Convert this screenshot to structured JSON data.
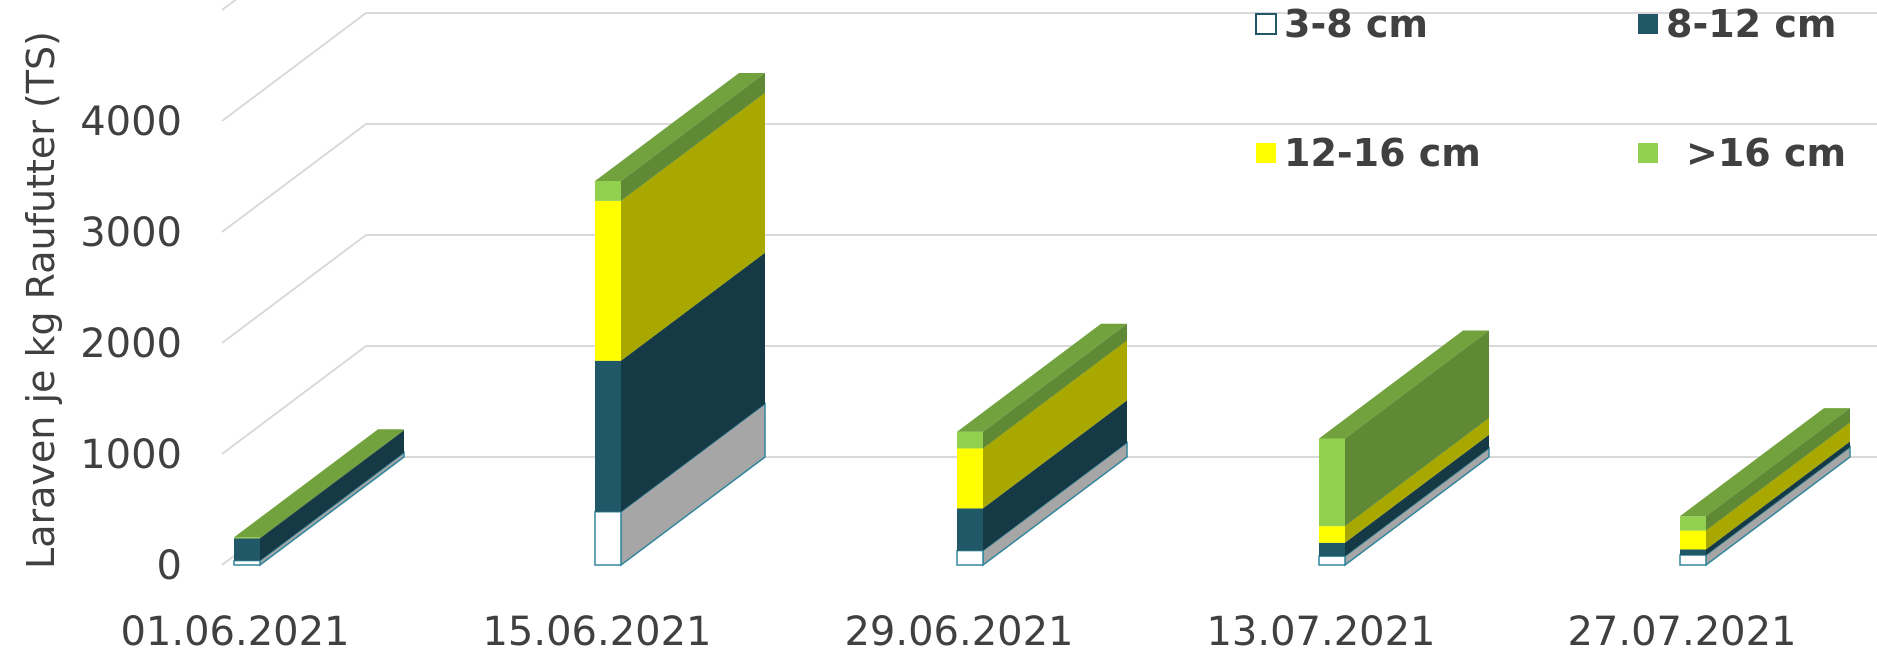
{
  "chart_data": {
    "type": "bar",
    "stacked": true,
    "three_d": true,
    "title": "",
    "xlabel": "",
    "ylabel": "Laraven je kg Raufutter  (TS)",
    "ylim": [
      0,
      4000
    ],
    "yticks": [
      "0",
      "1000",
      "2000",
      "3000",
      "4000"
    ],
    "grid": true,
    "legend_position": "top-right",
    "categories": [
      "01.06.2021",
      "15.06.2021",
      "29.06.2021",
      "13.07.2021",
      "27.07.2021"
    ],
    "series": [
      {
        "name": "3-8 cm",
        "values": [
          40,
          480,
          130,
          80,
          90
        ],
        "color": "#ffffff"
      },
      {
        "name": "8-12 cm",
        "values": [
          200,
          1360,
          380,
          120,
          50
        ],
        "color": "#215868"
      },
      {
        "name": "12-16 cm",
        "values": [
          0,
          1440,
          540,
          150,
          170
        ],
        "color": "#ffff00"
      },
      {
        "name": ">16 cm",
        "values": [
          10,
          180,
          150,
          790,
          130
        ],
        "color": "#92d050"
      }
    ]
  }
}
